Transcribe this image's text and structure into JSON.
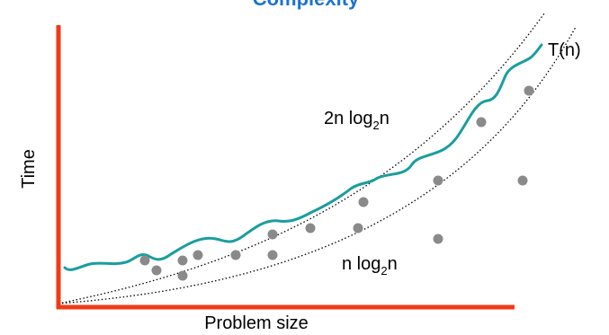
{
  "title": "Complexity",
  "y_axis_label": "Time",
  "x_axis_label": "Problem size",
  "curve_labels": {
    "upper": [
      "2n log",
      "2",
      "n"
    ],
    "lower": [
      "n log",
      "2",
      "n"
    ],
    "measured": "T(n)"
  }
}
